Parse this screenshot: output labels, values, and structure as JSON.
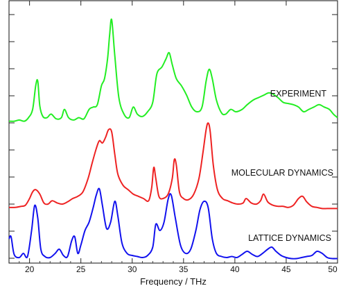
{
  "chart_data": {
    "type": "line",
    "title": "",
    "xlabel": "Frequency / THz",
    "ylabel": "",
    "xlim": [
      18,
      50
    ],
    "xticks": [
      "20",
      "25",
      "30",
      "35",
      "40",
      "45",
      "50"
    ],
    "grid": false,
    "legend": "none",
    "series": [
      {
        "name": "EXPERIMENT",
        "color": "#22ee22",
        "x": [
          18,
          18.5,
          19,
          19.5,
          19.9,
          20.3,
          20.6,
          20.8,
          21.0,
          21.3,
          21.7,
          22.1,
          22.6,
          23.1,
          23.4,
          23.8,
          24.3,
          24.8,
          25.3,
          25.8,
          26.2,
          26.6,
          27.0,
          27.3,
          27.6,
          27.8,
          28.0,
          28.3,
          28.7,
          29.2,
          29.7,
          30.1,
          30.5,
          31.0,
          31.5,
          32.0,
          32.4,
          32.9,
          33.3,
          33.6,
          33.9,
          34.3,
          34.8,
          35.3,
          35.8,
          36.3,
          36.8,
          37.2,
          37.5,
          37.8,
          38.2,
          38.7,
          39.1,
          39.6,
          40.1,
          40.7,
          41.2,
          41.8,
          42.3,
          42.8,
          43.3,
          43.7,
          44.2,
          44.7,
          45.2,
          45.7,
          46.2,
          46.7,
          47.2,
          47.7,
          48.2,
          48.7,
          49.2,
          49.6,
          50
        ],
        "values": [
          0.02,
          0.02,
          0.03,
          0.02,
          0.05,
          0.12,
          0.32,
          0.36,
          0.15,
          0.06,
          0.05,
          0.08,
          0.04,
          0.05,
          0.12,
          0.05,
          0.03,
          0.05,
          0.04,
          0.12,
          0.14,
          0.16,
          0.32,
          0.38,
          0.55,
          0.75,
          0.88,
          0.58,
          0.22,
          0.08,
          0.05,
          0.14,
          0.08,
          0.06,
          0.1,
          0.18,
          0.42,
          0.48,
          0.55,
          0.6,
          0.5,
          0.38,
          0.32,
          0.24,
          0.14,
          0.1,
          0.14,
          0.36,
          0.46,
          0.38,
          0.2,
          0.09,
          0.08,
          0.12,
          0.1,
          0.12,
          0.16,
          0.2,
          0.22,
          0.24,
          0.26,
          0.25,
          0.22,
          0.18,
          0.17,
          0.16,
          0.14,
          0.1,
          0.12,
          0.14,
          0.16,
          0.14,
          0.12,
          0.08,
          0.05
        ]
      },
      {
        "name": "MOLECULAR DYNAMICS",
        "color": "#ee2222",
        "x": [
          18,
          18.6,
          19.2,
          19.6,
          20.0,
          20.3,
          20.6,
          21.0,
          21.4,
          21.8,
          22.2,
          22.7,
          23.2,
          23.7,
          24.2,
          24.7,
          25.2,
          25.7,
          26.1,
          26.5,
          26.8,
          27.1,
          27.4,
          27.7,
          28.0,
          28.3,
          28.6,
          29.1,
          29.6,
          30.1,
          30.6,
          31.1,
          31.6,
          31.9,
          32.1,
          32.3,
          32.6,
          33.0,
          33.5,
          33.9,
          34.1,
          34.3,
          34.6,
          35.0,
          35.5,
          36.0,
          36.5,
          36.9,
          37.2,
          37.4,
          37.6,
          37.9,
          38.3,
          38.8,
          39.3,
          39.8,
          40.3,
          40.8,
          41.1,
          41.6,
          42.1,
          42.5,
          42.8,
          43.2,
          43.7,
          44.2,
          44.7,
          45.2,
          45.7,
          46.2,
          46.6,
          47.0,
          47.5,
          48.0,
          48.5,
          49.0,
          49.5,
          50
        ],
        "values": [
          0.02,
          0.02,
          0.03,
          0.04,
          0.1,
          0.16,
          0.18,
          0.14,
          0.06,
          0.05,
          0.08,
          0.06,
          0.05,
          0.07,
          0.1,
          0.12,
          0.16,
          0.28,
          0.42,
          0.55,
          0.62,
          0.6,
          0.65,
          0.72,
          0.7,
          0.5,
          0.32,
          0.22,
          0.18,
          0.14,
          0.12,
          0.1,
          0.08,
          0.2,
          0.38,
          0.28,
          0.12,
          0.1,
          0.14,
          0.28,
          0.45,
          0.4,
          0.16,
          0.1,
          0.09,
          0.14,
          0.28,
          0.52,
          0.72,
          0.78,
          0.7,
          0.4,
          0.18,
          0.1,
          0.08,
          0.06,
          0.05,
          0.06,
          0.1,
          0.06,
          0.05,
          0.08,
          0.14,
          0.07,
          0.04,
          0.03,
          0.03,
          0.02,
          0.04,
          0.1,
          0.12,
          0.07,
          0.03,
          0.02,
          0.01,
          0.01,
          0.01,
          0.01
        ]
      },
      {
        "name": "LATTICE DYNAMICS",
        "color": "#1111ee",
        "x": [
          18,
          18.2,
          18.5,
          19.0,
          19.4,
          19.8,
          20.2,
          20.5,
          20.8,
          21.1,
          21.5,
          22.0,
          22.5,
          22.9,
          23.3,
          23.7,
          24.1,
          24.4,
          24.7,
          25.0,
          25.4,
          25.8,
          26.2,
          26.5,
          26.8,
          27.1,
          27.5,
          27.9,
          28.3,
          28.6,
          29.0,
          29.5,
          30.0,
          30.5,
          31.0,
          31.5,
          32.0,
          32.3,
          32.7,
          33.1,
          33.5,
          33.8,
          34.2,
          34.7,
          35.2,
          35.7,
          36.2,
          36.6,
          37.0,
          37.4,
          37.8,
          38.2,
          38.7,
          39.2,
          39.7,
          40.2,
          40.7,
          41.2,
          41.7,
          42.2,
          42.7,
          43.2,
          43.6,
          44.0,
          44.5,
          45.0,
          45.5,
          46.0,
          46.5,
          47.0,
          47.5,
          48.0,
          48.5,
          49.0,
          49.5,
          50
        ],
        "values": [
          0.2,
          0.22,
          0.05,
          0.02,
          0.06,
          0.03,
          0.28,
          0.52,
          0.4,
          0.1,
          0.03,
          0.02,
          0.06,
          0.1,
          0.04,
          0.03,
          0.18,
          0.22,
          0.06,
          0.14,
          0.28,
          0.36,
          0.5,
          0.62,
          0.68,
          0.52,
          0.3,
          0.36,
          0.56,
          0.42,
          0.16,
          0.06,
          0.04,
          0.03,
          0.02,
          0.04,
          0.12,
          0.34,
          0.28,
          0.36,
          0.58,
          0.62,
          0.4,
          0.14,
          0.06,
          0.1,
          0.28,
          0.48,
          0.56,
          0.5,
          0.2,
          0.06,
          0.03,
          0.02,
          0.03,
          0.02,
          0.05,
          0.08,
          0.05,
          0.03,
          0.06,
          0.1,
          0.12,
          0.08,
          0.04,
          0.02,
          0.01,
          0.01,
          0.02,
          0.03,
          0.04,
          0.08,
          0.06,
          0.02,
          0.01,
          0.01
        ]
      }
    ]
  }
}
